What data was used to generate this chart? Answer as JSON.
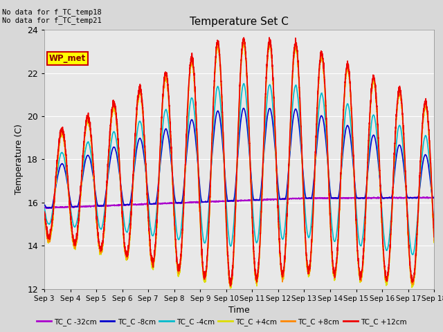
{
  "title": "Temperature Set C",
  "xlabel": "Time",
  "ylabel": "Temperature (C)",
  "ylim": [
    12,
    24
  ],
  "yticks": [
    12,
    14,
    16,
    18,
    20,
    22,
    24
  ],
  "x_labels": [
    "Sep 3",
    "Sep 4",
    "Sep 5",
    "Sep 6",
    "Sep 7",
    "Sep 8",
    "Sep 9",
    "Sep 10",
    "Sep 11",
    "Sep 12",
    "Sep 13",
    "Sep 14",
    "Sep 15",
    "Sep 16",
    "Sep 17",
    "Sep 18"
  ],
  "annotation_text": "No data for f_TC_temp18\nNo data for f_TC_temp21",
  "legend_box_label": "WP_met",
  "legend_box_color": "#ffff00",
  "legend_box_edge": "#cc0000",
  "series": [
    {
      "label": "TC_C -32cm",
      "color": "#aa00cc"
    },
    {
      "label": "TC_C -8cm",
      "color": "#0000cc"
    },
    {
      "label": "TC_C -4cm",
      "color": "#00bbcc"
    },
    {
      "label": "TC_C +4cm",
      "color": "#dddd00"
    },
    {
      "label": "TC_C +8cm",
      "color": "#ff8800"
    },
    {
      "label": "TC_C +12cm",
      "color": "#ee0000"
    }
  ],
  "bg_color": "#d8d8d8",
  "plot_bg_color": "#e8e8e8"
}
